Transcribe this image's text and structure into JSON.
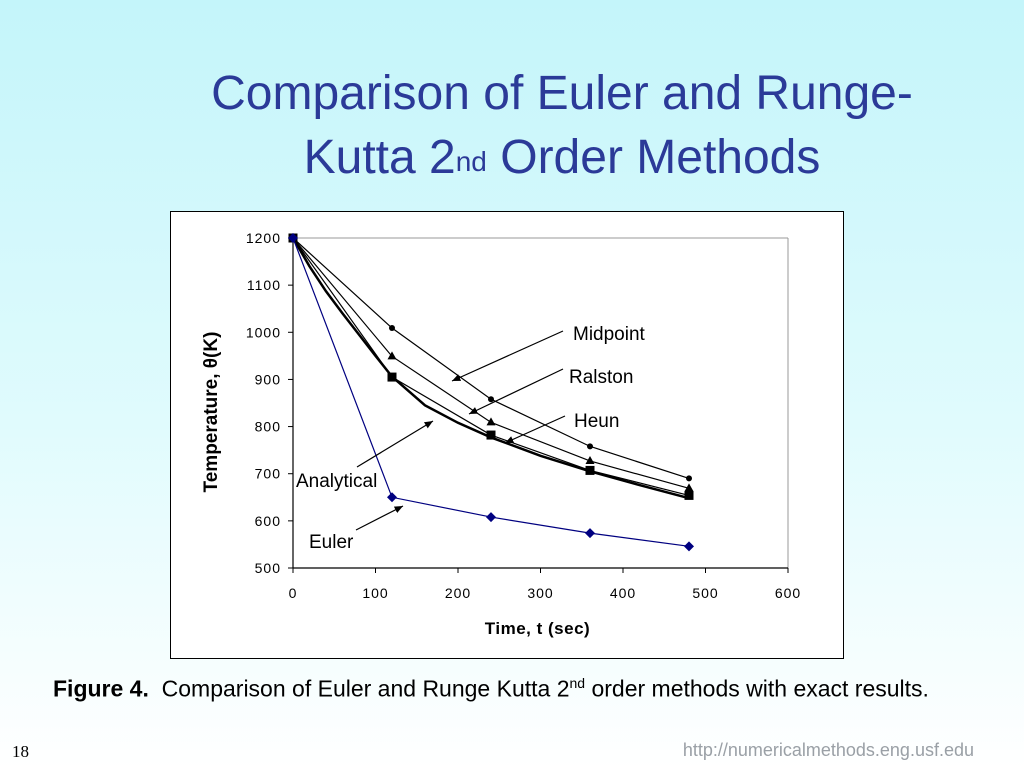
{
  "slide": {
    "title_line1": "Comparison of Euler and Runge-",
    "title_line2_pre": "Kutta 2",
    "title_line2_sup": "nd",
    "title_line2_post": " Order Methods",
    "caption_bold": "Figure 4.",
    "caption_pre": "  Comparison of Euler and Runge Kutta 2",
    "caption_sup": "nd",
    "caption_post": " order methods with exact results.",
    "page_number": "18",
    "url": "http://numericalmethods.eng.usf.edu"
  },
  "chart_data": {
    "type": "line",
    "xlabel": "Time, t (sec)",
    "ylabel": "Temperature, θ(K)",
    "xlim": [
      0,
      600
    ],
    "ylim": [
      500,
      1200
    ],
    "xticks": [
      "0",
      "100",
      "200",
      "300",
      "400",
      "500",
      "600"
    ],
    "yticks": [
      "500",
      "600",
      "700",
      "800",
      "900",
      "1000",
      "1100",
      "1200"
    ],
    "grid": false,
    "series": [
      {
        "name": "Analytical",
        "marker": "none",
        "color": "#000000",
        "x": [
          0,
          20,
          40,
          60,
          80,
          100,
          120,
          160,
          200,
          240,
          300,
          360,
          420,
          480
        ],
        "y": [
          1200,
          1140,
          1087,
          1040,
          995,
          950,
          906,
          845,
          808,
          777,
          738,
          705,
          676,
          648
        ]
      },
      {
        "name": "Midpoint",
        "marker": "circle",
        "color": "#000000",
        "x": [
          0,
          120,
          240,
          360,
          480
        ],
        "y": [
          1200,
          1009,
          858,
          758,
          690
        ]
      },
      {
        "name": "Ralston",
        "marker": "triangle",
        "color": "#000000",
        "x": [
          0,
          120,
          240,
          360,
          480
        ],
        "y": [
          1200,
          949,
          809,
          727,
          669
        ]
      },
      {
        "name": "Heun",
        "marker": "square",
        "color": "#000000",
        "x": [
          0,
          120,
          240,
          360,
          480
        ],
        "y": [
          1200,
          905,
          782,
          707,
          654
        ]
      },
      {
        "name": "Euler",
        "marker": "diamond",
        "color": "#000080",
        "x": [
          0,
          120,
          240,
          360,
          480
        ],
        "y": [
          1200,
          650,
          608,
          574,
          546
        ]
      }
    ],
    "annotations": [
      "Midpoint",
      "Ralston",
      "Heun",
      "Analytical",
      "Euler"
    ]
  }
}
